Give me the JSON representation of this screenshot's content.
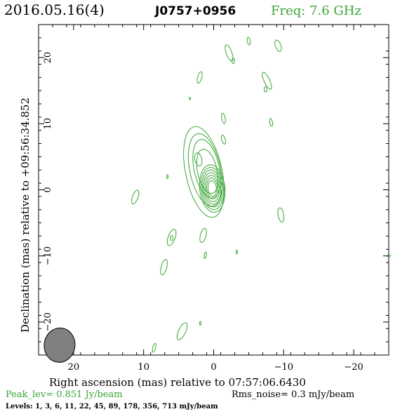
{
  "header": {
    "date": "2016.05.16(4)",
    "source": "J0757+0956",
    "freq": "Freq: 7.6 GHz"
  },
  "footer": {
    "peak": "Peak_lev=  0.851 Jy/beam",
    "rms": "Rms_noise=  0.3 mJy/beam",
    "levels": "Levels:   1,   3,   6,  11,  22,  45,  89, 178, 356, 713 mJy/beam"
  },
  "colors": {
    "contour": "#3aa535",
    "text": "#000000",
    "beam": "#808080"
  },
  "chart_data": {
    "type": "contour",
    "xlabel": "Right ascension (mas) relative to 07:57:06.6430",
    "ylabel": "Declination (mas) relative to +09:56:34.852",
    "xlim": [
      25,
      -25
    ],
    "ylim": [
      -25,
      25
    ],
    "x_ticks": [
      20,
      10,
      0,
      -10,
      -20
    ],
    "y_ticks": [
      20,
      10,
      0,
      -10,
      -20
    ],
    "x_tick_labels": [
      "20",
      "10",
      "0",
      "−10",
      "−20"
    ],
    "y_tick_labels": [
      "20",
      "10",
      "0",
      "−10",
      "−20"
    ],
    "contour_levels_mJy": [
      1,
      3,
      6,
      11,
      22,
      45,
      89,
      178,
      356,
      713
    ],
    "beam": {
      "x": 22,
      "y": -23.5,
      "major": 2.6,
      "minor": 1.1
    },
    "core": {
      "x": 0.2,
      "y": 0.2,
      "core_rings": [
        {
          "rx": 0.6,
          "ry": 1.2
        },
        {
          "rx": 0.8,
          "ry": 1.6
        },
        {
          "rx": 1.0,
          "ry": 2.0
        },
        {
          "rx": 1.2,
          "ry": 2.4
        },
        {
          "rx": 1.4,
          "ry": 2.8
        },
        {
          "rx": 1.6,
          "ry": 3.2
        },
        {
          "rx": 1.8,
          "ry": 3.6
        }
      ]
    },
    "jet_contours": [
      {
        "x": 1.4,
        "y": 2.7,
        "rx": 2.6,
        "ry": 7.0
      },
      {
        "x": 1.2,
        "y": 3.0,
        "rx": 2.2,
        "ry": 5.6
      },
      {
        "x": 1.0,
        "y": 3.2,
        "rx": 1.8,
        "ry": 4.5
      },
      {
        "x": 0.9,
        "y": 2.8,
        "rx": 1.4,
        "ry": 3.4
      },
      {
        "x": 2.2,
        "y": 4.6,
        "rx": 0.5,
        "ry": 1.0
      }
    ],
    "noise_blobs": [
      {
        "x": -2.2,
        "y": 20.7,
        "rx": 0.4,
        "ry": 1.3,
        "angle": -20
      },
      {
        "x": -2.8,
        "y": 19.5,
        "rx": 0.2,
        "ry": 0.4,
        "angle": 0
      },
      {
        "x": -5.0,
        "y": 22.5,
        "rx": 0.2,
        "ry": 0.6,
        "angle": -10
      },
      {
        "x": -9.2,
        "y": 21.8,
        "rx": 0.4,
        "ry": 0.9,
        "angle": -20
      },
      {
        "x": 2.0,
        "y": 17.0,
        "rx": 0.3,
        "ry": 0.9,
        "angle": 15
      },
      {
        "x": -7.6,
        "y": 16.5,
        "rx": 0.4,
        "ry": 1.4,
        "angle": -25
      },
      {
        "x": -7.4,
        "y": 15.2,
        "rx": 0.2,
        "ry": 0.4,
        "angle": 0
      },
      {
        "x": 3.4,
        "y": 13.8,
        "rx": 0.1,
        "ry": 0.2,
        "angle": 0
      },
      {
        "x": -1.4,
        "y": 10.8,
        "rx": 0.25,
        "ry": 0.8,
        "angle": -10
      },
      {
        "x": -8.2,
        "y": 10.2,
        "rx": 0.2,
        "ry": 0.6,
        "angle": -10
      },
      {
        "x": -1.4,
        "y": 7.6,
        "rx": 0.25,
        "ry": 0.7,
        "angle": -15
      },
      {
        "x": 6.6,
        "y": 2.0,
        "rx": 0.1,
        "ry": 0.3,
        "angle": 0
      },
      {
        "x": 11.2,
        "y": -1.1,
        "rx": 0.4,
        "ry": 1.1,
        "angle": 20
      },
      {
        "x": -9.6,
        "y": -3.8,
        "rx": 0.4,
        "ry": 1.1,
        "angle": -10
      },
      {
        "x": 6.0,
        "y": -7.2,
        "rx": 0.5,
        "ry": 1.3,
        "angle": 20
      },
      {
        "x": 6.0,
        "y": -7.3,
        "rx": 0.2,
        "ry": 0.4,
        "angle": 0
      },
      {
        "x": 1.5,
        "y": -6.9,
        "rx": 0.4,
        "ry": 1.1,
        "angle": 15
      },
      {
        "x": 1.2,
        "y": -9.9,
        "rx": 0.15,
        "ry": 0.5,
        "angle": 10
      },
      {
        "x": -3.3,
        "y": -9.4,
        "rx": 0.1,
        "ry": 0.3,
        "angle": 0
      },
      {
        "x": 7.1,
        "y": -11.7,
        "rx": 0.4,
        "ry": 1.2,
        "angle": 15
      },
      {
        "x": -25.0,
        "y": -10.0,
        "rx": 0.25,
        "ry": 0.15,
        "angle": 0
      },
      {
        "x": 1.9,
        "y": -20.2,
        "rx": 0.1,
        "ry": 0.3,
        "angle": 0
      },
      {
        "x": 4.5,
        "y": -21.4,
        "rx": 0.5,
        "ry": 1.4,
        "angle": 25
      },
      {
        "x": 8.5,
        "y": -23.9,
        "rx": 0.2,
        "ry": 0.7,
        "angle": 15
      }
    ]
  }
}
